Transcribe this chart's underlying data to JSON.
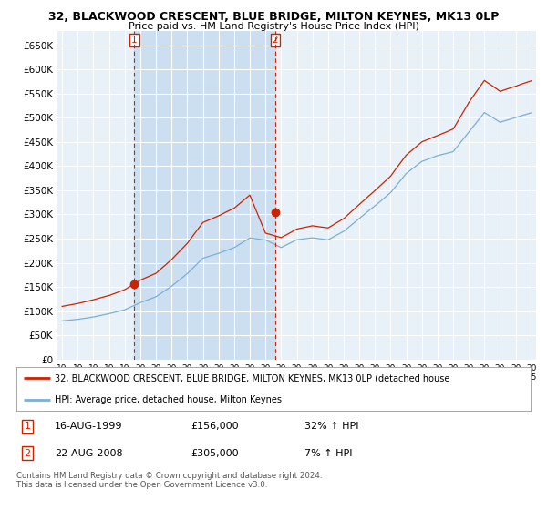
{
  "title": "32, BLACKWOOD CRESCENT, BLUE BRIDGE, MILTON KEYNES, MK13 0LP",
  "subtitle": "Price paid vs. HM Land Registry's House Price Index (HPI)",
  "ylim": [
    0,
    680000
  ],
  "yticks": [
    0,
    50000,
    100000,
    150000,
    200000,
    250000,
    300000,
    350000,
    400000,
    450000,
    500000,
    550000,
    600000,
    650000
  ],
  "ytick_labels": [
    "£0",
    "£50K",
    "£100K",
    "£150K",
    "£200K",
    "£250K",
    "£300K",
    "£350K",
    "£400K",
    "£450K",
    "£500K",
    "£550K",
    "£600K",
    "£650K"
  ],
  "bg_color": "#dce8f5",
  "bg_color_outside": "#e8f0f8",
  "grid_color": "#ffffff",
  "sale1_year": 1999.62,
  "sale1_price": 156000,
  "sale2_year": 2008.63,
  "sale2_price": 305000,
  "legend_line1": "32, BLACKWOOD CRESCENT, BLUE BRIDGE, MILTON KEYNES, MK13 0LP (detached house",
  "legend_line2": "HPI: Average price, detached house, Milton Keynes",
  "ann1_date": "16-AUG-1999",
  "ann1_price": "£156,000",
  "ann1_hpi": "32% ↑ HPI",
  "ann2_date": "22-AUG-2008",
  "ann2_price": "£305,000",
  "ann2_hpi": "7% ↑ HPI",
  "footer": "Contains HM Land Registry data © Crown copyright and database right 2024.\nThis data is licensed under the Open Government Licence v3.0.",
  "red_color": "#cc2200",
  "blue_color": "#7ab0d4",
  "shade_color": "#ccdff0",
  "xlim_left": 1994.7,
  "xlim_right": 2025.3
}
